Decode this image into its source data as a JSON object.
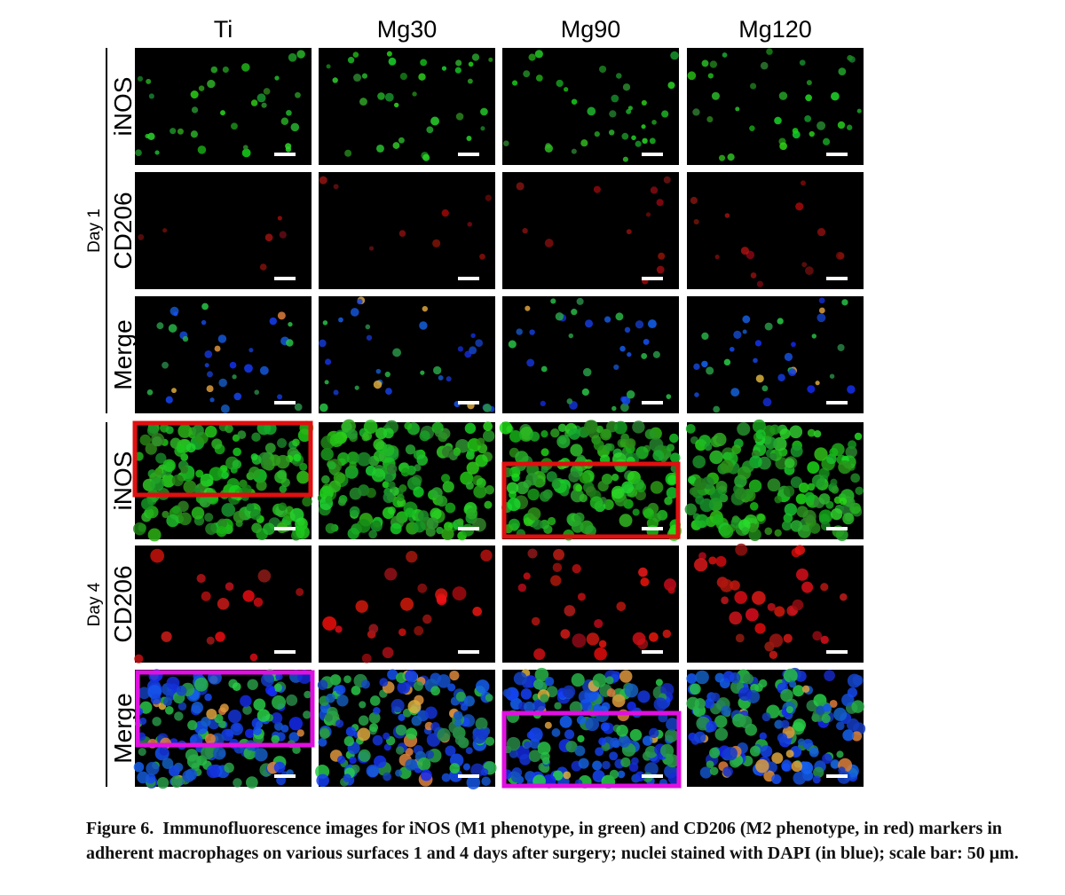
{
  "columns": [
    "Ti",
    "Mg30",
    "Mg90",
    "Mg120"
  ],
  "groups": [
    {
      "day": "Day 1",
      "rows": [
        "iNOS",
        "CD206",
        "Merge"
      ]
    },
    {
      "day": "Day 4",
      "rows": [
        "iNOS",
        "CD206",
        "Merge"
      ]
    }
  ],
  "caption": {
    "label": "Figure 6.",
    "text": "Immunofluorescence images for iNOS (M1 phenotype, in green) and CD206 (M2 phenotype, in red) markers in adherent macrophages on various surfaces 1 and 4 days after surgery; nuclei stained with DAPI (in blue); scale bar: 50 μm."
  }
}
